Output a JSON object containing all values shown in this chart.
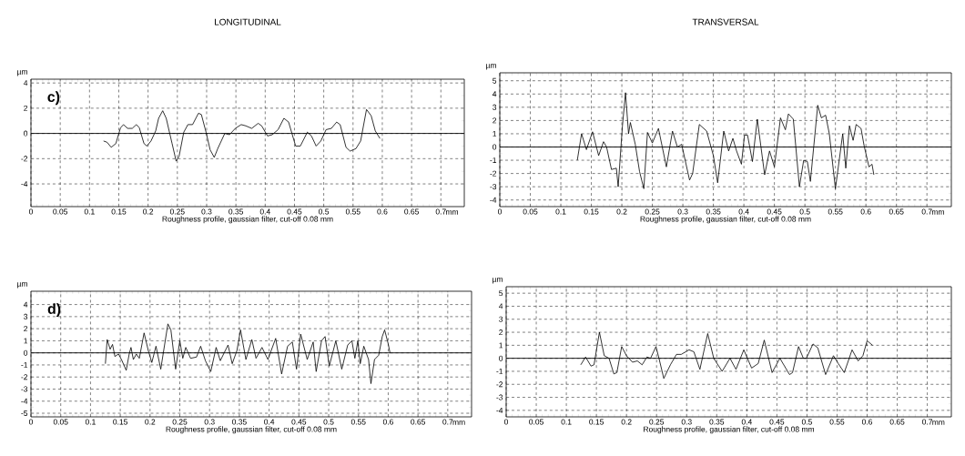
{
  "chart_data": [
    {
      "type": "line",
      "title": "LONGITUDINAL",
      "xlabel": "Roughness profile, gaussian filter, cut-off 0.08 mm",
      "ylabel": "µm",
      "annotations": [
        "c)",
        "mm"
      ],
      "color": "#000000",
      "grid": true,
      "xlim": [
        0,
        0.74
      ],
      "ylim": [
        -5.8,
        4.3
      ],
      "xticks": [
        0,
        0.05,
        0.1,
        0.15,
        0.2,
        0.25,
        0.3,
        0.35,
        0.4,
        0.45,
        0.5,
        0.55,
        0.6,
        0.65,
        0.7
      ],
      "yticks": [
        -4,
        -2,
        0,
        2,
        4
      ],
      "ref_lines": [
        {
          "axis": "y",
          "value": 0
        }
      ],
      "x": [
        0.124,
        0.13,
        0.137,
        0.145,
        0.153,
        0.158,
        0.165,
        0.173,
        0.18,
        0.185,
        0.193,
        0.198,
        0.205,
        0.213,
        0.218,
        0.225,
        0.231,
        0.241,
        0.248,
        0.253,
        0.261,
        0.268,
        0.276,
        0.286,
        0.291,
        0.299,
        0.306,
        0.313,
        0.319,
        0.331,
        0.339,
        0.349,
        0.359,
        0.367,
        0.377,
        0.388,
        0.394,
        0.404,
        0.412,
        0.422,
        0.432,
        0.44,
        0.452,
        0.46,
        0.472,
        0.479,
        0.487,
        0.495,
        0.504,
        0.513,
        0.522,
        0.528,
        0.538,
        0.545,
        0.555,
        0.563,
        0.573,
        0.581,
        0.588,
        0.596
      ],
      "values": [
        -0.6,
        -0.7,
        -1.1,
        -0.8,
        0.45,
        0.7,
        0.4,
        0.4,
        0.7,
        0.45,
        -0.8,
        -1.0,
        -0.6,
        0.2,
        1.2,
        1.8,
        1.2,
        -0.8,
        -2.2,
        -1.8,
        0.1,
        0.7,
        0.7,
        1.6,
        1.5,
        0.1,
        -1.3,
        -1.9,
        -1.2,
        0,
        -0.1,
        0.4,
        0.7,
        0.6,
        0.4,
        0.8,
        0.6,
        -0.2,
        -0.1,
        0.3,
        1.2,
        0.9,
        -1.0,
        -1.0,
        0.1,
        -0.2,
        -1.0,
        -0.6,
        0.3,
        0.4,
        0.9,
        0.7,
        -1.1,
        -1.4,
        -1.2,
        -0.6,
        1.9,
        1.4,
        0.2,
        -0.4
      ]
    },
    {
      "type": "line",
      "title": "TRANSVERSAL",
      "annotations": [
        "mm"
      ],
      "xlabel": "Roughness profile, gaussian filter, cut-off 0.08 mm",
      "ylabel": "µm",
      "color": "#000000",
      "grid": true,
      "xlim": [
        0,
        0.74
      ],
      "ylim": [
        -4.5,
        5.6
      ],
      "xticks": [
        0,
        0.05,
        0.1,
        0.15,
        0.2,
        0.25,
        0.3,
        0.35,
        0.4,
        0.45,
        0.5,
        0.55,
        0.6,
        0.65,
        0.7
      ],
      "yticks": [
        -4,
        -3,
        -2,
        -1,
        0,
        1,
        2,
        3,
        4,
        5
      ],
      "ref_lines": [
        {
          "axis": "y",
          "value": 0
        }
      ],
      "x": [
        0.127,
        0.134,
        0.142,
        0.152,
        0.162,
        0.17,
        0.175,
        0.183,
        0.191,
        0.194,
        0.201,
        0.206,
        0.211,
        0.214,
        0.222,
        0.229,
        0.236,
        0.242,
        0.25,
        0.26,
        0.273,
        0.283,
        0.291,
        0.298,
        0.311,
        0.316,
        0.327,
        0.339,
        0.35,
        0.357,
        0.367,
        0.375,
        0.382,
        0.388,
        0.396,
        0.401,
        0.406,
        0.414,
        0.422,
        0.434,
        0.442,
        0.45,
        0.46,
        0.468,
        0.473,
        0.481,
        0.491,
        0.498,
        0.504,
        0.509,
        0.521,
        0.527,
        0.534,
        0.54,
        0.55,
        0.562,
        0.567,
        0.573,
        0.579,
        0.584,
        0.592,
        0.597,
        0.605,
        0.61,
        0.613
      ],
      "values": [
        -1.0,
        1.0,
        -0.2,
        1.15,
        -0.65,
        0.4,
        0,
        -1.7,
        -1.6,
        -3.0,
        1.6,
        4.1,
        1.0,
        1.85,
        0.2,
        -1.85,
        -3.15,
        1.1,
        0.3,
        1.4,
        -1.5,
        1.2,
        0,
        0.2,
        -2.5,
        -2.0,
        1.7,
        1.2,
        -0.65,
        -2.7,
        1.2,
        -0.3,
        0.65,
        -0.3,
        -1.3,
        0.9,
        0.9,
        -1.1,
        2.1,
        -2.1,
        -0.3,
        -1.5,
        2.2,
        1.3,
        2.5,
        2.1,
        -3.0,
        -1.0,
        -1.1,
        -2.6,
        3.15,
        2.2,
        2.4,
        1.0,
        -3.15,
        1.0,
        -1.6,
        1.6,
        0.5,
        1.7,
        1.4,
        0.1,
        -1.5,
        -1.3,
        -2.1
      ]
    },
    {
      "type": "line",
      "xlabel": "Roughness profile, gaussian filter, cut-off 0.08 mm",
      "ylabel": "µm",
      "annotations": [
        "d)",
        "mm"
      ],
      "color": "#000000",
      "grid": true,
      "xlim": [
        0,
        0.74
      ],
      "ylim": [
        -5.3,
        5.1
      ],
      "xticks": [
        0,
        0.05,
        0.1,
        0.15,
        0.2,
        0.25,
        0.3,
        0.35,
        0.4,
        0.45,
        0.5,
        0.55,
        0.6,
        0.65,
        0.7
      ],
      "yticks": [
        -5,
        -4,
        -3,
        -2,
        -1,
        0,
        1,
        2,
        3,
        4
      ],
      "ref_lines": [
        {
          "axis": "y",
          "value": 0
        }
      ],
      "x": [
        0.125,
        0.128,
        0.133,
        0.137,
        0.141,
        0.147,
        0.152,
        0.16,
        0.165,
        0.168,
        0.172,
        0.177,
        0.182,
        0.19,
        0.197,
        0.203,
        0.21,
        0.218,
        0.23,
        0.235,
        0.243,
        0.25,
        0.255,
        0.26,
        0.268,
        0.278,
        0.285,
        0.293,
        0.302,
        0.311,
        0.318,
        0.331,
        0.338,
        0.346,
        0.352,
        0.361,
        0.371,
        0.378,
        0.388,
        0.398,
        0.411,
        0.421,
        0.431,
        0.439,
        0.446,
        0.453,
        0.464,
        0.474,
        0.479,
        0.488,
        0.494,
        0.501,
        0.512,
        0.522,
        0.532,
        0.539,
        0.544,
        0.549,
        0.553,
        0.559,
        0.567,
        0.571,
        0.577,
        0.584,
        0.59,
        0.594,
        0.6,
        0.603
      ],
      "values": [
        -0.9,
        1.1,
        0.3,
        0.7,
        -0.3,
        -0.1,
        -0.55,
        -1.45,
        -0.1,
        0.45,
        -0.55,
        -0.1,
        -0.45,
        1.65,
        0.2,
        -0.8,
        0.55,
        -1.35,
        2.4,
        1.9,
        -1.35,
        1.0,
        -0.45,
        0.45,
        -0.45,
        -0.35,
        0.55,
        -0.65,
        -1.55,
        0.45,
        -0.65,
        0.65,
        -0.9,
        0.2,
        1.9,
        -0.55,
        1.1,
        -0.45,
        0.45,
        -0.55,
        1.2,
        -1.75,
        0.55,
        0.9,
        -1.35,
        1.55,
        -0.55,
        0.9,
        -1.55,
        1.0,
        1.35,
        -1.1,
        1.0,
        -1.35,
        0.65,
        1.0,
        -0.45,
        1.0,
        -0.9,
        0.55,
        -0.55,
        -2.55,
        -0.55,
        -0.2,
        1.35,
        1.9,
        0.75,
        0
      ]
    },
    {
      "type": "line",
      "xlabel": "Roughness profile, gaussian filter, cut-off 0.08 mm",
      "ylabel": "µm",
      "color": "#000000",
      "grid": true,
      "xlim": [
        0,
        0.74
      ],
      "ylim": [
        -4.5,
        5.5
      ],
      "xticks": [
        0,
        0.05,
        0.1,
        0.15,
        0.2,
        0.25,
        0.3,
        0.35,
        0.4,
        0.45,
        0.5,
        0.55,
        0.6,
        0.65,
        0.7
      ],
      "annotations": [
        "mm"
      ],
      "yticks": [
        -4,
        -3,
        -2,
        -1,
        0,
        1,
        2,
        3,
        4,
        5
      ],
      "ref_lines": [
        {
          "axis": "y",
          "value": 0
        }
      ],
      "x": [
        0.124,
        0.132,
        0.141,
        0.146,
        0.155,
        0.163,
        0.171,
        0.179,
        0.184,
        0.192,
        0.2,
        0.21,
        0.218,
        0.226,
        0.234,
        0.24,
        0.249,
        0.254,
        0.262,
        0.273,
        0.283,
        0.291,
        0.304,
        0.312,
        0.322,
        0.335,
        0.345,
        0.359,
        0.372,
        0.382,
        0.395,
        0.408,
        0.419,
        0.429,
        0.442,
        0.455,
        0.471,
        0.476,
        0.486,
        0.494,
        0.499,
        0.51,
        0.518,
        0.531,
        0.544,
        0.552,
        0.562,
        0.575,
        0.585,
        0.593,
        0.6,
        0.609
      ],
      "values": [
        -0.5,
        0.1,
        -0.6,
        -0.5,
        2.0,
        0.2,
        0,
        -1.2,
        -1.1,
        0.9,
        0.2,
        -0.3,
        -0.2,
        -0.5,
        0.1,
        0,
        0.9,
        0,
        -1.55,
        -0.5,
        0.3,
        0.3,
        0.65,
        0.5,
        -0.85,
        1.9,
        0,
        -1.0,
        0,
        -0.85,
        0.65,
        -0.75,
        -0.4,
        1.4,
        -1.1,
        0,
        -1.25,
        -1.1,
        0.9,
        0,
        0,
        1.1,
        0.8,
        -1.25,
        0.2,
        -0.4,
        -1.1,
        0.65,
        -0.2,
        0.2,
        1.35,
        1.0
      ]
    }
  ]
}
